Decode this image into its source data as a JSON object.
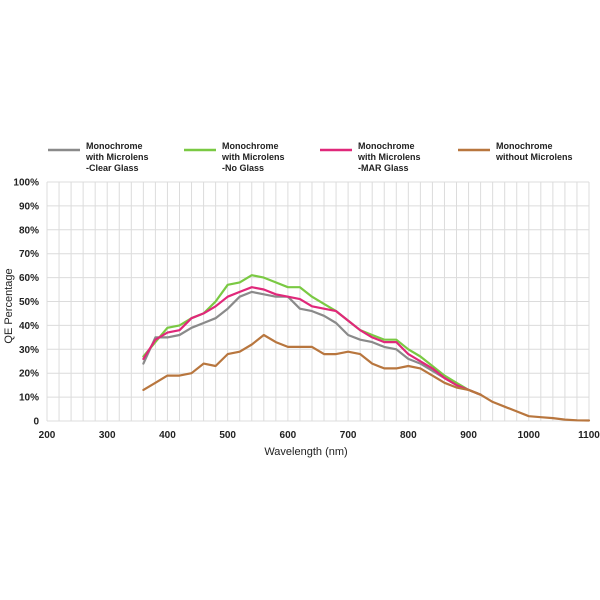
{
  "chart_data": {
    "type": "line",
    "title": "",
    "xlabel": "Wavelength (nm)",
    "ylabel": "QE Percentage",
    "xlim": [
      200,
      1100
    ],
    "ylim": [
      0,
      100
    ],
    "x_ticks": [
      "200",
      "300",
      "400",
      "500",
      "600",
      "700",
      "800",
      "900",
      "1000",
      "1100"
    ],
    "y_ticks": [
      "0",
      "10%",
      "20%",
      "30%",
      "40%",
      "50%",
      "60%",
      "70%",
      "80%",
      "90%",
      "100%"
    ],
    "grid": true,
    "legend_position": "top",
    "series": [
      {
        "name": "Monochrome with Microlens -Clear Glass",
        "legend_lines": [
          "Monochrome",
          "with Microlens",
          "-Clear Glass"
        ],
        "color": "#8a8a8a",
        "x": [
          360,
          380,
          400,
          420,
          440,
          460,
          480,
          500,
          520,
          540,
          560,
          580,
          600,
          620,
          640,
          660,
          680,
          700,
          720,
          740,
          760,
          780,
          800,
          820,
          840,
          860,
          880,
          900,
          920
        ],
        "y": [
          24,
          35,
          35,
          36,
          39,
          41,
          43,
          47,
          52,
          54,
          53,
          52,
          52,
          47,
          46,
          44,
          41,
          36,
          34,
          33,
          31,
          30,
          26,
          24,
          21,
          18,
          15,
          13,
          11
        ]
      },
      {
        "name": "Monochrome with Microlens -No Glass",
        "legend_lines": [
          "Monochrome",
          "with Microlens",
          "-No Glass"
        ],
        "color": "#7ac943",
        "x": [
          360,
          380,
          400,
          420,
          440,
          460,
          480,
          500,
          520,
          540,
          560,
          580,
          600,
          620,
          640,
          660,
          680,
          700,
          720,
          740,
          760,
          780,
          800,
          820,
          840,
          860,
          880,
          900,
          920
        ],
        "y": [
          27,
          33,
          39,
          40,
          43,
          45,
          50,
          57,
          58,
          61,
          60,
          58,
          56,
          56,
          52,
          49,
          46,
          42,
          38,
          36,
          34,
          34,
          30,
          27,
          23,
          19,
          16,
          13,
          11
        ]
      },
      {
        "name": "Monochrome with Microlens -MAR Glass",
        "legend_lines": [
          "Monochrome",
          "with Microlens",
          "-MAR Glass"
        ],
        "color": "#e0287a",
        "x": [
          360,
          380,
          400,
          420,
          440,
          460,
          480,
          500,
          520,
          540,
          560,
          580,
          600,
          620,
          640,
          660,
          680,
          700,
          720,
          740,
          760,
          780,
          800,
          820,
          840,
          860,
          880,
          900,
          920
        ],
        "y": [
          26,
          34,
          37,
          38,
          43,
          45,
          48,
          52,
          54,
          56,
          55,
          53,
          52,
          51,
          48,
          47,
          46,
          42,
          38,
          35,
          33,
          33,
          28,
          25,
          22,
          18,
          15,
          13,
          11
        ]
      },
      {
        "name": "Monochrome without Microlens",
        "legend_lines": [
          "Monochrome",
          "without Microlens"
        ],
        "color": "#b8763e",
        "x": [
          360,
          380,
          400,
          420,
          440,
          460,
          480,
          500,
          520,
          540,
          560,
          580,
          600,
          620,
          640,
          660,
          680,
          700,
          720,
          740,
          760,
          780,
          800,
          820,
          840,
          860,
          880,
          900,
          920,
          940,
          960,
          980,
          1000,
          1020,
          1040,
          1060,
          1080,
          1100
        ],
        "y": [
          13,
          16,
          19,
          19,
          20,
          24,
          23,
          28,
          29,
          32,
          36,
          33,
          31,
          31,
          31,
          28,
          28,
          29,
          28,
          24,
          22,
          22,
          23,
          22,
          19,
          16,
          14,
          13,
          11,
          8,
          6,
          4,
          2,
          1.6,
          1.2,
          0.6,
          0.3,
          0.2
        ]
      }
    ]
  }
}
